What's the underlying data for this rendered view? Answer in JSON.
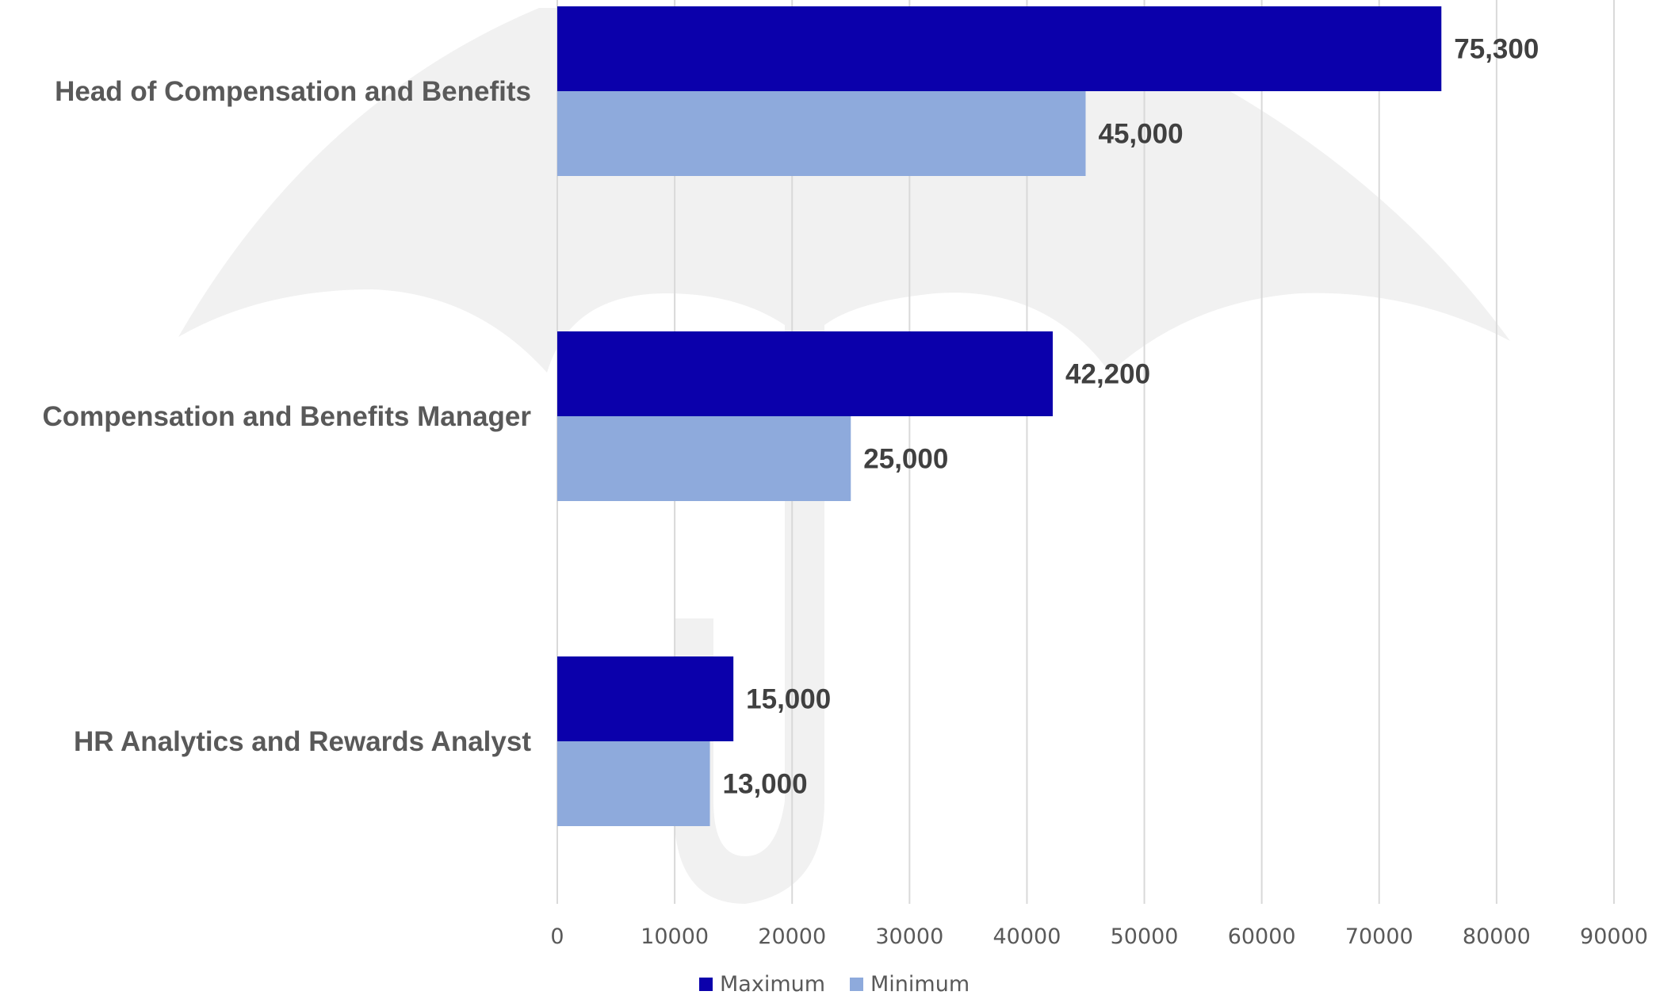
{
  "chart_data": {
    "type": "bar",
    "orientation": "horizontal",
    "categories": [
      "Head of Compensation and Benefits",
      "Compensation and Benefits Manager",
      "HR Analytics and Rewards Analyst"
    ],
    "series": [
      {
        "name": "Maximum",
        "values": [
          75300,
          42200,
          15000
        ],
        "labels": [
          "75,300",
          "42,200",
          "15,000"
        ],
        "color": "#0b00ab"
      },
      {
        "name": "Minimum",
        "values": [
          45000,
          25000,
          13000
        ],
        "labels": [
          "45,000",
          "25,000",
          "13,000"
        ],
        "color": "#8eaadc"
      }
    ],
    "xlim": [
      0,
      90000
    ],
    "xticks": [
      "0",
      "10000",
      "20000",
      "30000",
      "40000",
      "50000",
      "60000",
      "70000",
      "80000",
      "90000"
    ],
    "grid": "vertical",
    "legend": "bottom",
    "gridline_color": "#d9d9d9",
    "watermark": "umbrella-icon"
  }
}
